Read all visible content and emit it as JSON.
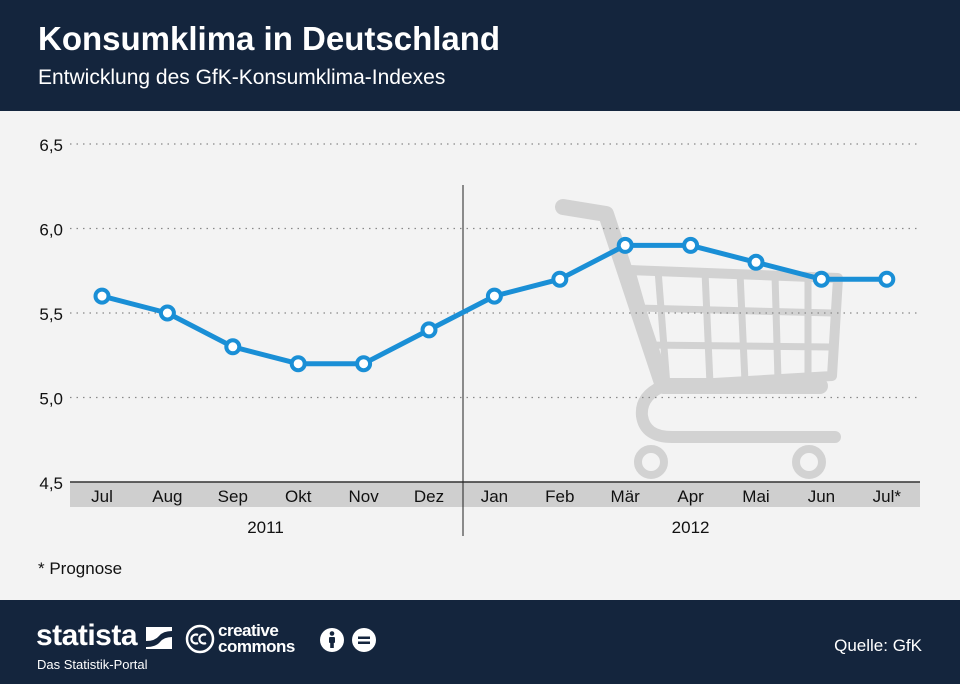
{
  "header": {
    "title": "Konsumklima in Deutschland",
    "subtitle": "Entwicklung des GfK-Konsumklima-Indexes"
  },
  "chart_data": {
    "type": "line",
    "categories": [
      "Jul",
      "Aug",
      "Sep",
      "Okt",
      "Nov",
      "Dez",
      "Jan",
      "Feb",
      "Mär",
      "Apr",
      "Mai",
      "Jun",
      "Jul*"
    ],
    "years": [
      {
        "label": "2011",
        "from": 0,
        "to": 5
      },
      {
        "label": "2012",
        "from": 6,
        "to": 12
      }
    ],
    "series": [
      {
        "values": [
          5.6,
          5.5,
          5.3,
          5.2,
          5.2,
          5.4,
          5.6,
          5.7,
          5.9,
          5.9,
          5.8,
          5.7,
          5.7
        ]
      }
    ],
    "ylim": [
      4.5,
      6.5
    ],
    "yticks": [
      "4,5",
      "5,0",
      "5,5",
      "6,0",
      "6,5"
    ],
    "grid": true,
    "colors": {
      "line": "#1a8fd6",
      "grid": "#888888",
      "axis_band": "#cfcfcf",
      "background_icon": "#d2d2d2"
    },
    "background_icon": "shopping-cart-icon"
  },
  "footnote": "* Prognose",
  "footer": {
    "brand": "statista",
    "tagline": "Das Statistik-Portal",
    "cc_line1": "creative",
    "cc_line2": "commons",
    "source": "Quelle: GfK"
  }
}
